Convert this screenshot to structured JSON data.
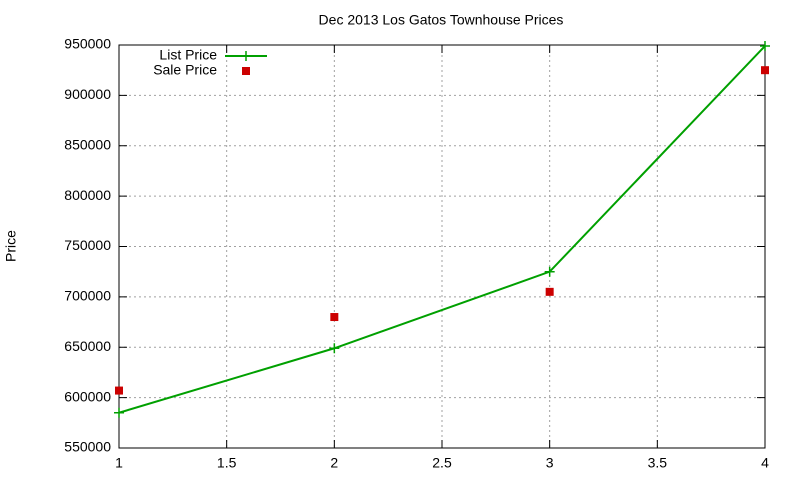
{
  "chart_data": {
    "type": "line",
    "title": "Dec 2013 Los Gatos Townhouse Prices",
    "ylabel": "Price",
    "x": [
      1,
      2,
      3,
      4
    ],
    "series": [
      {
        "name": "List Price",
        "color": "#00a000",
        "marker": "plus",
        "line": true,
        "values": [
          585000,
          649000,
          725000,
          949000
        ]
      },
      {
        "name": "Sale Price",
        "color": "#cc0000",
        "marker": "square",
        "line": false,
        "values": [
          607000,
          680000,
          705000,
          925000
        ]
      }
    ],
    "xlim": [
      1,
      4
    ],
    "xticks": [
      1,
      1.5,
      2,
      2.5,
      3,
      3.5,
      4
    ],
    "ylim": [
      550000,
      950000
    ],
    "yticks": [
      550000,
      600000,
      650000,
      700000,
      750000,
      800000,
      850000,
      900000,
      950000
    ],
    "grid": true,
    "legend": "top-left"
  }
}
